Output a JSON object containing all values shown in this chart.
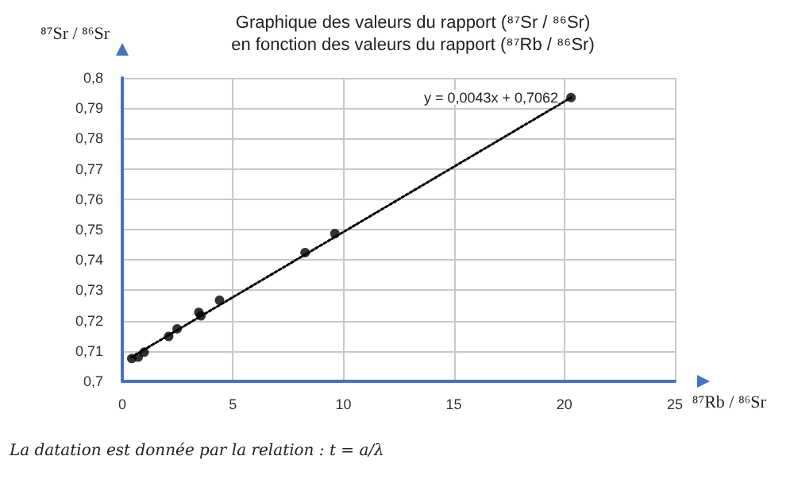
{
  "chart_data": {
    "type": "scatter",
    "title": "Graphique des valeurs du rapport (⁸⁷Sr / ⁸⁶Sr)",
    "subtitle": "en fonction des valeurs du rapport (⁸⁷Rb / ⁸⁶Sr)",
    "xlabel": "⁸⁷Rb / ⁸⁶Sr",
    "ylabel": "⁸⁷Sr / ⁸⁶Sr",
    "series": [
      {
        "color": "#000000",
        "marker": "circle",
        "x": [
          0.43,
          0.72,
          0.99,
          2.1,
          2.48,
          3.46,
          3.56,
          4.4,
          8.27,
          9.62,
          20.3
        ],
        "values": [
          0.7075,
          0.708,
          0.7096,
          0.7148,
          0.7173,
          0.7227,
          0.7216,
          0.7267,
          0.7424,
          0.7487,
          0.7935
        ]
      },
      {
        "type": "line",
        "color": "#000000",
        "line_style": "dotted",
        "marker": "none",
        "x": [
          0.4,
          20.3
        ],
        "values": [
          0.7079,
          0.7935
        ]
      }
    ],
    "xlim": [
      0,
      25
    ],
    "xticks": [
      0,
      5,
      10,
      15,
      20,
      25
    ],
    "ylim": [
      0.7,
      0.8
    ],
    "yticks": [
      {
        "value": 0.7,
        "label": "0,7"
      },
      {
        "value": 0.71,
        "label": "0,71"
      },
      {
        "value": 0.72,
        "label": "0,72"
      },
      {
        "value": 0.73,
        "label": "0,73"
      },
      {
        "value": 0.74,
        "label": "0,74"
      },
      {
        "value": 0.75,
        "label": "0,75"
      },
      {
        "value": 0.76,
        "label": "0,76"
      },
      {
        "value": 0.77,
        "label": "0,77"
      },
      {
        "value": 0.78,
        "label": "0,78"
      },
      {
        "value": 0.79,
        "label": "0,79"
      },
      {
        "value": 0.8,
        "label": "0,8"
      }
    ],
    "grid": true,
    "annotations": [
      {
        "text": "y = 0,0043x + 0,7062",
        "x": 20.3,
        "y": 0.7935
      },
      "La datation est donnée par la relation : t = a/λ"
    ]
  }
}
